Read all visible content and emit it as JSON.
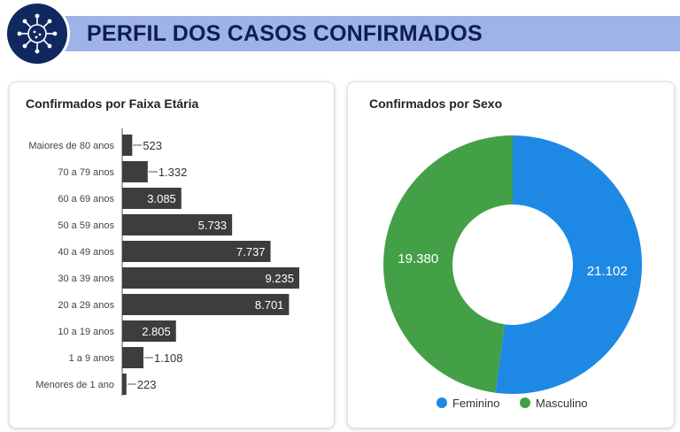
{
  "header": {
    "title": "PERFIL DOS CASOS CONFIRMADOS",
    "icon": "virus-icon"
  },
  "colors": {
    "header_bar": "#9fb3e8",
    "title_text": "#0d1f4e",
    "bar": "#3d3d3f",
    "feminino": "#1e88e5",
    "masculino": "#43a047"
  },
  "age_panel": {
    "title": "Confirmados por Faixa Etária"
  },
  "sex_panel": {
    "title": "Confirmados por Sexo"
  },
  "chart_data": [
    {
      "type": "bar",
      "orientation": "horizontal",
      "title": "Confirmados por Faixa Etária",
      "categories": [
        "Maiores de 80 anos",
        "70 a 79 anos",
        "60 a 69 anos",
        "50 a 59 anos",
        "40 a 49 anos",
        "30 a 39 anos",
        "20 a 29 anos",
        "10 a 19 anos",
        "1 a 9 anos",
        "Menores de 1 ano"
      ],
      "values": [
        523,
        1332,
        3085,
        5733,
        7737,
        9235,
        8701,
        2805,
        1108,
        223
      ],
      "labels": [
        "523",
        "1.332",
        "3.085",
        "5.733",
        "7.737",
        "9.235",
        "8.701",
        "2.805",
        "1.108",
        "223"
      ]
    },
    {
      "type": "pie",
      "donut": true,
      "title": "Confirmados por Sexo",
      "categories": [
        "Feminino",
        "Masculino"
      ],
      "values": [
        21102,
        19380
      ],
      "labels": [
        "21.102",
        "19.380"
      ],
      "legend": "bottom"
    }
  ]
}
